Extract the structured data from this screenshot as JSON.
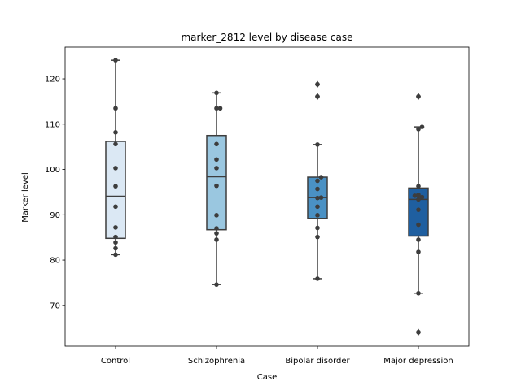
{
  "chart_data": {
    "type": "box",
    "title": "marker_2812 level by disease case",
    "xlabel": "Case",
    "ylabel": "Marker level",
    "ylim": [
      61,
      127
    ],
    "yticks": [
      70,
      80,
      90,
      100,
      110,
      120
    ],
    "grid": false,
    "categories": [
      "Control",
      "Schizophrenia",
      "Bipolar disorder",
      "Major depression"
    ],
    "box_colors": [
      "#dbe8f4",
      "#9ac7e0",
      "#4a91c4",
      "#1f5fa0"
    ],
    "boxes": [
      {
        "name": "Control",
        "whisker_low": 81.2,
        "q1": 84.8,
        "median": 94.1,
        "q3": 106.2,
        "whisker_high": 124.1,
        "outliers": []
      },
      {
        "name": "Schizophrenia",
        "whisker_low": 74.6,
        "q1": 86.7,
        "median": 98.4,
        "q3": 107.5,
        "whisker_high": 116.9,
        "outliers": []
      },
      {
        "name": "Bipolar disorder",
        "whisker_low": 75.9,
        "q1": 89.2,
        "median": 93.8,
        "q3": 98.3,
        "whisker_high": 105.5,
        "outliers": [
          116.1,
          118.8
        ]
      },
      {
        "name": "Major depression",
        "whisker_low": 72.7,
        "q1": 85.3,
        "median": 93.4,
        "q3": 95.9,
        "whisker_high": 109.4,
        "outliers": [
          64.1,
          116.1
        ]
      }
    ],
    "points": [
      [
        81.2,
        82.6,
        83.9,
        85.1,
        87.2,
        91.8,
        96.3,
        100.3,
        105.6,
        108.2,
        113.5,
        124.1
      ],
      [
        74.6,
        84.5,
        85.9,
        87.0,
        89.9,
        96.4,
        100.3,
        102.2,
        105.6,
        113.5,
        113.5,
        116.9
      ],
      [
        75.9,
        85.1,
        87.1,
        89.9,
        91.8,
        93.7,
        93.8,
        95.7,
        97.5,
        98.3,
        105.5,
        116.1,
        118.8
      ],
      [
        64.1,
        72.7,
        81.8,
        84.5,
        87.8,
        91.1,
        93.4,
        93.9,
        94.2,
        94.4,
        96.3,
        108.9,
        109.4,
        116.1
      ]
    ]
  }
}
